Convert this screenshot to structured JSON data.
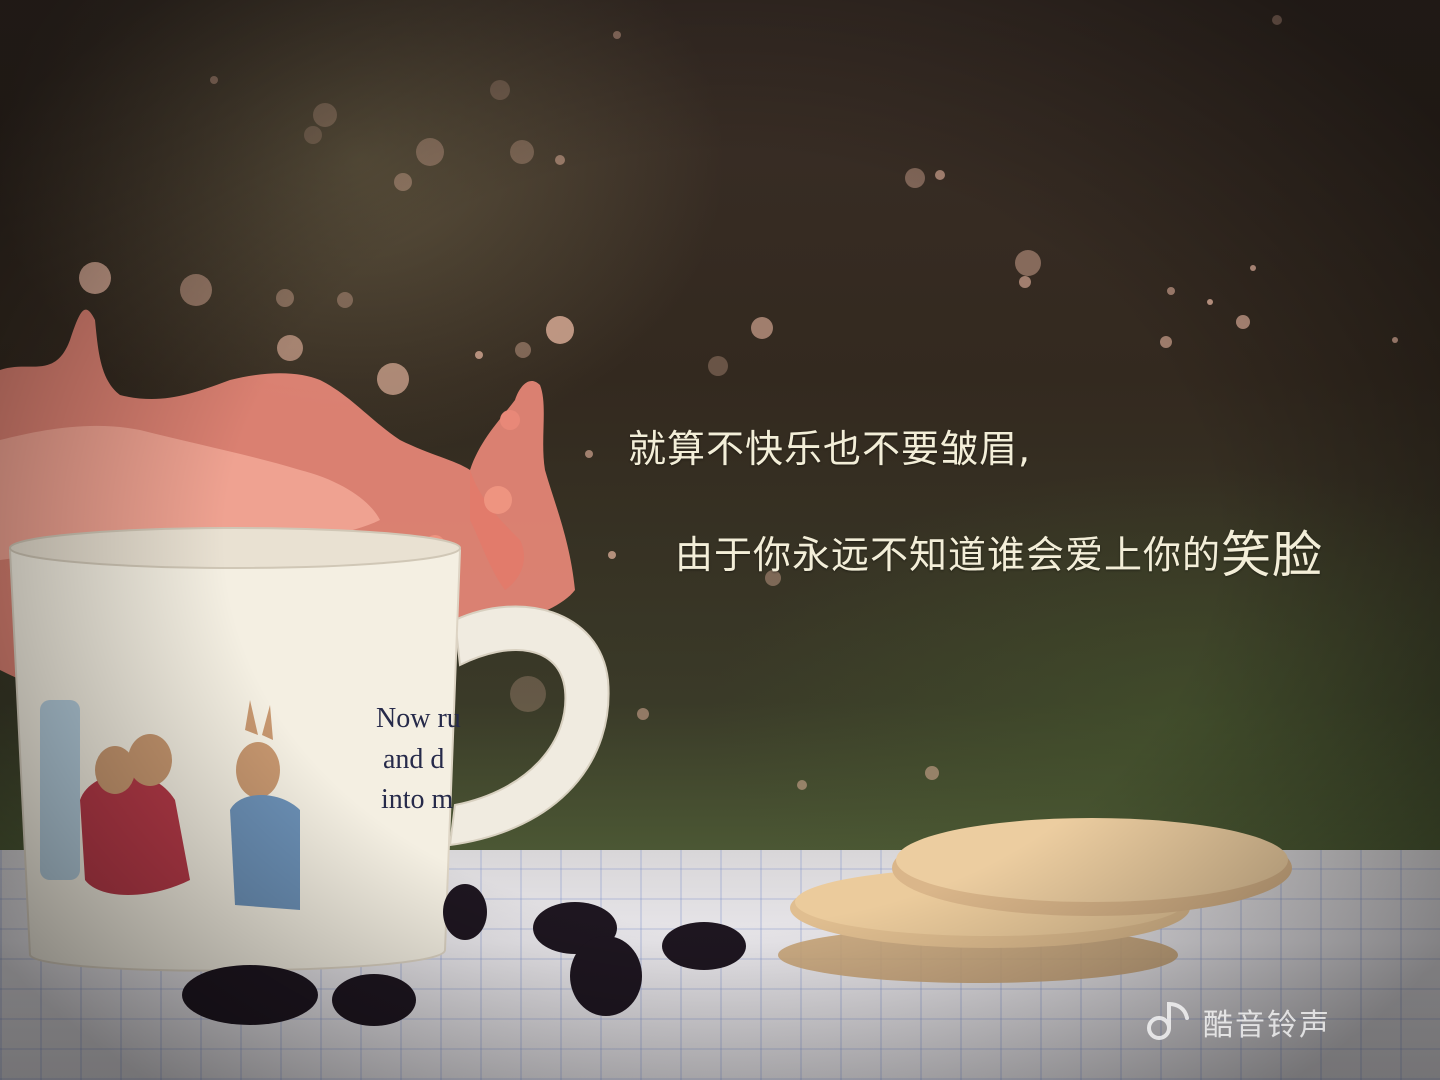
{
  "caption": {
    "line1": "就算不快乐也不要皱眉,",
    "line2_main": "由于你永远不知道谁会爱上你的",
    "line2_emphasis": "笑脸"
  },
  "mug": {
    "print_text": [
      "Now ru",
      "and d",
      "into m"
    ]
  },
  "watermark": {
    "text": "酷音铃声",
    "icon": "music-note-logo-icon"
  },
  "colors": {
    "caption_text": "#f3eed8",
    "splash": "#e88878",
    "mug": "#f4efe2",
    "biscuit": "#e8c89a",
    "bean": "#1e1620"
  }
}
